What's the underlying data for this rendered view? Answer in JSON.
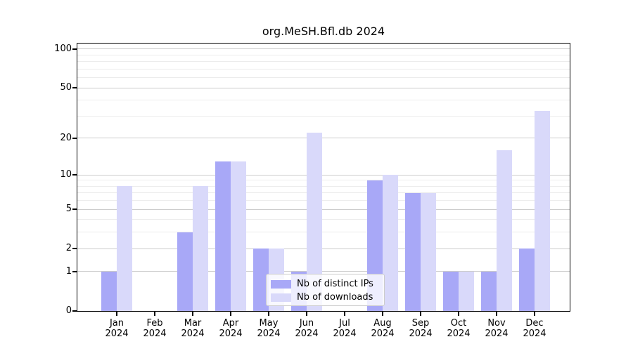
{
  "title": "org.MeSH.Bfl.db 2024",
  "chart_data": {
    "type": "bar",
    "title": "org.MeSH.Bfl.db 2024",
    "categories": [
      "Jan",
      "Feb",
      "Mar",
      "Apr",
      "May",
      "Jun",
      "Jul",
      "Aug",
      "Sep",
      "Oct",
      "Nov",
      "Dec"
    ],
    "year_label": "2024",
    "series": [
      {
        "name": "Nb of distinct IPs",
        "color": "#a8a8f7",
        "values": [
          1,
          0,
          3,
          13,
          2,
          1,
          0,
          9,
          7,
          1,
          1,
          2
        ]
      },
      {
        "name": "Nb of downloads",
        "color": "#d9d9fa",
        "values": [
          8,
          0,
          8,
          13,
          2,
          22,
          0,
          10,
          7,
          1,
          16,
          33
        ]
      }
    ],
    "xlabel": "",
    "ylabel": "",
    "yscale": "log10(1+x)",
    "ylim": [
      0,
      111
    ],
    "yticks": [
      0,
      1,
      2,
      5,
      10,
      20,
      50,
      100
    ],
    "minor_yticks": [
      3,
      4,
      6,
      7,
      8,
      9,
      30,
      40,
      60,
      70,
      80,
      90
    ],
    "grid": true,
    "legend_position": "lower-center-inside"
  },
  "colors": {
    "ips_bar": "#a8a8f7",
    "downloads_bar": "#d9d9fa",
    "major_grid": "#cccccc",
    "minor_grid": "#ececec",
    "axis": "#000000",
    "text": "#000000",
    "legend_border": "#cccccc"
  }
}
